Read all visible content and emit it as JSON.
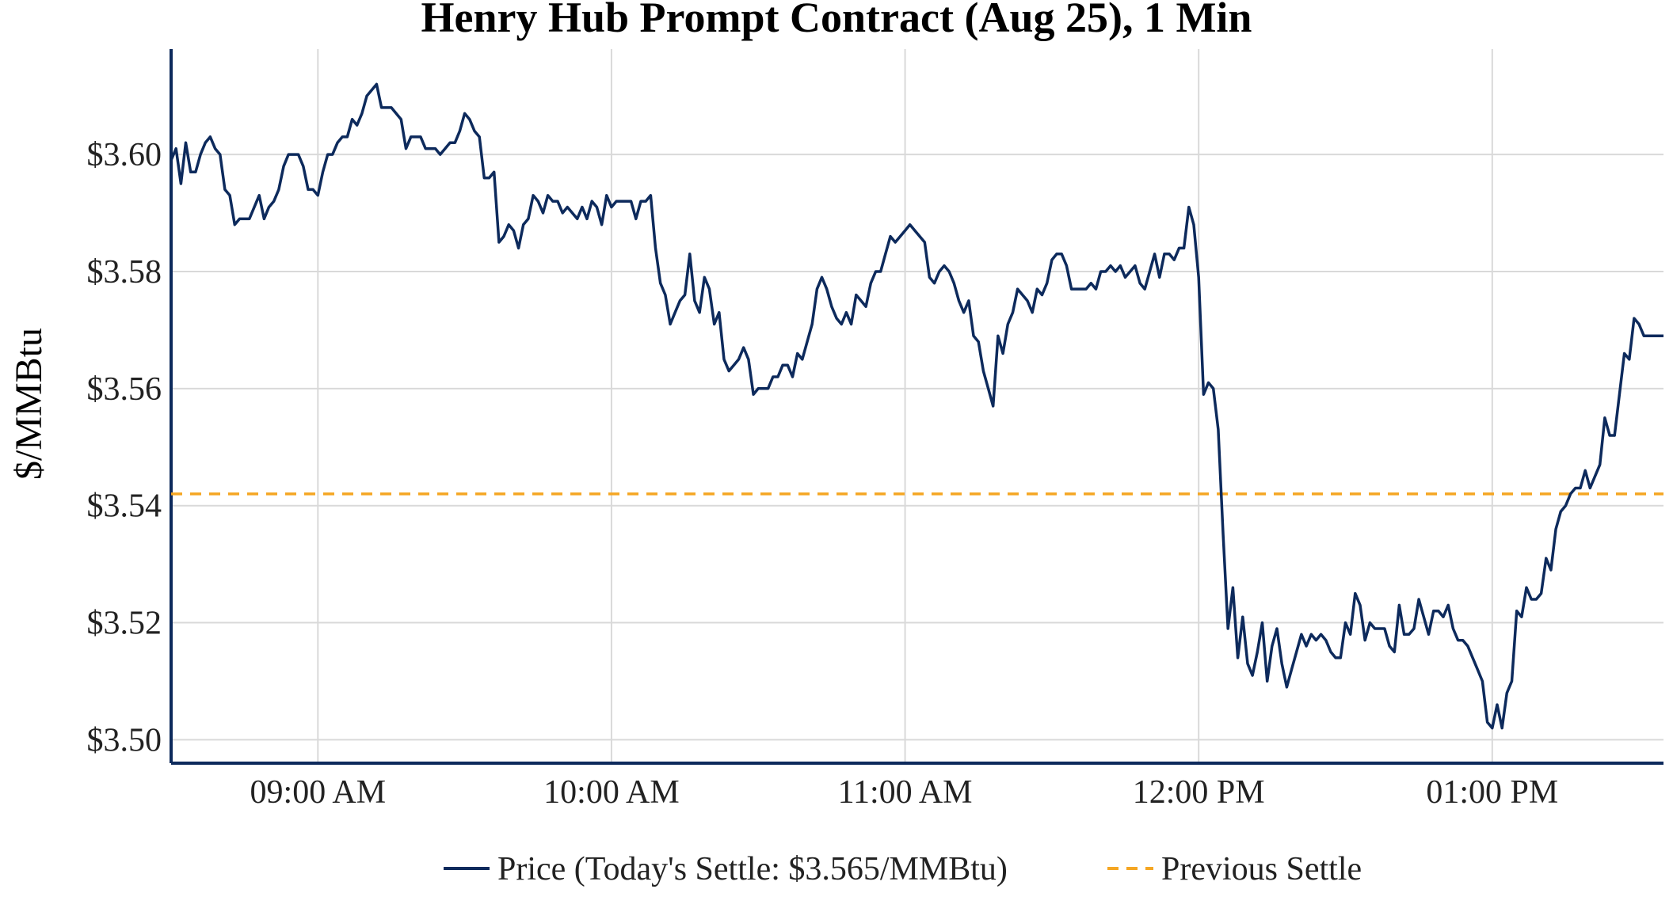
{
  "chart_data": {
    "type": "line",
    "title": "Henry Hub Prompt Contract (Aug 25), 1 Min",
    "xlabel": "",
    "ylabel": "$/MMBtu",
    "x_ticks": [
      "09:00 AM",
      "10:00 AM",
      "11:00 AM",
      "12:00 PM",
      "01:00 PM"
    ],
    "y_ticks": [
      "$3.50",
      "$3.52",
      "$3.54",
      "$3.56",
      "$3.58",
      "$3.60"
    ],
    "y_tick_values": [
      3.5,
      3.52,
      3.54,
      3.56,
      3.58,
      3.6
    ],
    "ylim": [
      3.496,
      3.618
    ],
    "xlim_minutes": [
      510,
      815
    ],
    "x_tick_minutes": [
      540,
      600,
      660,
      720,
      780
    ],
    "grid": true,
    "legend_position": "bottom",
    "series": [
      {
        "name": "Price (Today's Settle: $3.565/MMBtu)",
        "color": "#0d2a5c",
        "points": [
          [
            510,
            3.599
          ],
          [
            511,
            3.601
          ],
          [
            512,
            3.595
          ],
          [
            513,
            3.602
          ],
          [
            514,
            3.597
          ],
          [
            515,
            3.597
          ],
          [
            516,
            3.6
          ],
          [
            517,
            3.602
          ],
          [
            518,
            3.603
          ],
          [
            519,
            3.601
          ],
          [
            520,
            3.6
          ],
          [
            521,
            3.594
          ],
          [
            522,
            3.593
          ],
          [
            523,
            3.588
          ],
          [
            524,
            3.589
          ],
          [
            526,
            3.589
          ],
          [
            528,
            3.593
          ],
          [
            529,
            3.589
          ],
          [
            530,
            3.591
          ],
          [
            531,
            3.592
          ],
          [
            532,
            3.594
          ],
          [
            533,
            3.598
          ],
          [
            534,
            3.6
          ],
          [
            536,
            3.6
          ],
          [
            537,
            3.598
          ],
          [
            538,
            3.594
          ],
          [
            539,
            3.594
          ],
          [
            540,
            3.593
          ],
          [
            541,
            3.597
          ],
          [
            542,
            3.6
          ],
          [
            543,
            3.6
          ],
          [
            544,
            3.602
          ],
          [
            545,
            3.603
          ],
          [
            546,
            3.603
          ],
          [
            547,
            3.606
          ],
          [
            548,
            3.605
          ],
          [
            549,
            3.607
          ],
          [
            550,
            3.61
          ],
          [
            552,
            3.612
          ],
          [
            553,
            3.608
          ],
          [
            555,
            3.608
          ],
          [
            557,
            3.606
          ],
          [
            558,
            3.601
          ],
          [
            559,
            3.603
          ],
          [
            561,
            3.603
          ],
          [
            562,
            3.601
          ],
          [
            564,
            3.601
          ],
          [
            565,
            3.6
          ],
          [
            566,
            3.601
          ],
          [
            567,
            3.602
          ],
          [
            568,
            3.602
          ],
          [
            569,
            3.604
          ],
          [
            570,
            3.607
          ],
          [
            571,
            3.606
          ],
          [
            572,
            3.604
          ],
          [
            573,
            3.603
          ],
          [
            574,
            3.596
          ],
          [
            575,
            3.596
          ],
          [
            576,
            3.597
          ],
          [
            577,
            3.585
          ],
          [
            578,
            3.586
          ],
          [
            579,
            3.588
          ],
          [
            580,
            3.587
          ],
          [
            581,
            3.584
          ],
          [
            582,
            3.588
          ],
          [
            583,
            3.589
          ],
          [
            584,
            3.593
          ],
          [
            585,
            3.592
          ],
          [
            586,
            3.59
          ],
          [
            587,
            3.593
          ],
          [
            588,
            3.592
          ],
          [
            589,
            3.592
          ],
          [
            590,
            3.59
          ],
          [
            591,
            3.591
          ],
          [
            592,
            3.59
          ],
          [
            593,
            3.589
          ],
          [
            594,
            3.591
          ],
          [
            595,
            3.589
          ],
          [
            596,
            3.592
          ],
          [
            597,
            3.591
          ],
          [
            598,
            3.588
          ],
          [
            599,
            3.593
          ],
          [
            600,
            3.591
          ],
          [
            601,
            3.592
          ],
          [
            603,
            3.592
          ],
          [
            604,
            3.592
          ],
          [
            605,
            3.589
          ],
          [
            606,
            3.592
          ],
          [
            607,
            3.592
          ],
          [
            608,
            3.593
          ],
          [
            609,
            3.584
          ],
          [
            610,
            3.578
          ],
          [
            611,
            3.576
          ],
          [
            612,
            3.571
          ],
          [
            613,
            3.573
          ],
          [
            614,
            3.575
          ],
          [
            615,
            3.576
          ],
          [
            616,
            3.583
          ],
          [
            617,
            3.575
          ],
          [
            618,
            3.573
          ],
          [
            619,
            3.579
          ],
          [
            620,
            3.577
          ],
          [
            621,
            3.571
          ],
          [
            622,
            3.573
          ],
          [
            623,
            3.565
          ],
          [
            624,
            3.563
          ],
          [
            625,
            3.564
          ],
          [
            626,
            3.565
          ],
          [
            627,
            3.567
          ],
          [
            628,
            3.565
          ],
          [
            629,
            3.559
          ],
          [
            630,
            3.56
          ],
          [
            632,
            3.56
          ],
          [
            633,
            3.562
          ],
          [
            634,
            3.562
          ],
          [
            635,
            3.564
          ],
          [
            636,
            3.564
          ],
          [
            637,
            3.562
          ],
          [
            638,
            3.566
          ],
          [
            639,
            3.565
          ],
          [
            640,
            3.568
          ],
          [
            641,
            3.571
          ],
          [
            642,
            3.577
          ],
          [
            643,
            3.579
          ],
          [
            644,
            3.577
          ],
          [
            645,
            3.574
          ],
          [
            646,
            3.572
          ],
          [
            647,
            3.571
          ],
          [
            648,
            3.573
          ],
          [
            649,
            3.571
          ],
          [
            650,
            3.576
          ],
          [
            651,
            3.575
          ],
          [
            652,
            3.574
          ],
          [
            653,
            3.578
          ],
          [
            654,
            3.58
          ],
          [
            655,
            3.58
          ],
          [
            656,
            3.583
          ],
          [
            657,
            3.586
          ],
          [
            658,
            3.585
          ],
          [
            659,
            3.586
          ],
          [
            660,
            3.587
          ],
          [
            661,
            3.588
          ],
          [
            662,
            3.587
          ],
          [
            663,
            3.586
          ],
          [
            664,
            3.585
          ],
          [
            665,
            3.579
          ],
          [
            666,
            3.578
          ],
          [
            667,
            3.58
          ],
          [
            668,
            3.581
          ],
          [
            669,
            3.58
          ],
          [
            670,
            3.578
          ],
          [
            671,
            3.575
          ],
          [
            672,
            3.573
          ],
          [
            673,
            3.575
          ],
          [
            674,
            3.569
          ],
          [
            675,
            3.568
          ],
          [
            676,
            3.563
          ],
          [
            677,
            3.56
          ],
          [
            678,
            3.557
          ],
          [
            679,
            3.569
          ],
          [
            680,
            3.566
          ],
          [
            681,
            3.571
          ],
          [
            682,
            3.573
          ],
          [
            683,
            3.577
          ],
          [
            684,
            3.576
          ],
          [
            685,
            3.575
          ],
          [
            686,
            3.573
          ],
          [
            687,
            3.577
          ],
          [
            688,
            3.576
          ],
          [
            689,
            3.578
          ],
          [
            690,
            3.582
          ],
          [
            691,
            3.583
          ],
          [
            692,
            3.583
          ],
          [
            693,
            3.581
          ],
          [
            694,
            3.577
          ],
          [
            695,
            3.577
          ],
          [
            696,
            3.577
          ],
          [
            697,
            3.577
          ],
          [
            698,
            3.578
          ],
          [
            699,
            3.577
          ],
          [
            700,
            3.58
          ],
          [
            701,
            3.58
          ],
          [
            702,
            3.581
          ],
          [
            703,
            3.58
          ],
          [
            704,
            3.581
          ],
          [
            705,
            3.579
          ],
          [
            706,
            3.58
          ],
          [
            707,
            3.581
          ],
          [
            708,
            3.578
          ],
          [
            709,
            3.577
          ],
          [
            710,
            3.58
          ],
          [
            711,
            3.583
          ],
          [
            712,
            3.579
          ],
          [
            713,
            3.583
          ],
          [
            714,
            3.583
          ],
          [
            715,
            3.582
          ],
          [
            716,
            3.584
          ],
          [
            717,
            3.584
          ],
          [
            718,
            3.591
          ],
          [
            719,
            3.588
          ],
          [
            720,
            3.579
          ],
          [
            721,
            3.559
          ],
          [
            722,
            3.561
          ],
          [
            723,
            3.56
          ],
          [
            724,
            3.553
          ],
          [
            725,
            3.535
          ],
          [
            726,
            3.519
          ],
          [
            727,
            3.526
          ],
          [
            728,
            3.514
          ],
          [
            729,
            3.521
          ],
          [
            730,
            3.513
          ],
          [
            731,
            3.511
          ],
          [
            732,
            3.515
          ],
          [
            733,
            3.52
          ],
          [
            734,
            3.51
          ],
          [
            735,
            3.516
          ],
          [
            736,
            3.519
          ],
          [
            737,
            3.513
          ],
          [
            738,
            3.509
          ],
          [
            739,
            3.512
          ],
          [
            740,
            3.515
          ],
          [
            741,
            3.518
          ],
          [
            742,
            3.516
          ],
          [
            743,
            3.518
          ],
          [
            744,
            3.517
          ],
          [
            745,
            3.518
          ],
          [
            746,
            3.517
          ],
          [
            747,
            3.515
          ],
          [
            748,
            3.514
          ],
          [
            749,
            3.514
          ],
          [
            750,
            3.52
          ],
          [
            751,
            3.518
          ],
          [
            752,
            3.525
          ],
          [
            753,
            3.523
          ],
          [
            754,
            3.517
          ],
          [
            755,
            3.52
          ],
          [
            756,
            3.519
          ],
          [
            758,
            3.519
          ],
          [
            759,
            3.516
          ],
          [
            760,
            3.515
          ],
          [
            761,
            3.523
          ],
          [
            762,
            3.518
          ],
          [
            763,
            3.518
          ],
          [
            764,
            3.519
          ],
          [
            765,
            3.524
          ],
          [
            766,
            3.521
          ],
          [
            767,
            3.518
          ],
          [
            768,
            3.522
          ],
          [
            769,
            3.522
          ],
          [
            770,
            3.521
          ],
          [
            771,
            3.523
          ],
          [
            772,
            3.519
          ],
          [
            773,
            3.517
          ],
          [
            774,
            3.517
          ],
          [
            775,
            3.516
          ],
          [
            776,
            3.514
          ],
          [
            777,
            3.512
          ],
          [
            778,
            3.51
          ],
          [
            779,
            3.503
          ],
          [
            780,
            3.502
          ],
          [
            781,
            3.506
          ],
          [
            782,
            3.502
          ],
          [
            783,
            3.508
          ],
          [
            784,
            3.51
          ],
          [
            785,
            3.522
          ],
          [
            786,
            3.521
          ],
          [
            787,
            3.526
          ],
          [
            788,
            3.524
          ],
          [
            789,
            3.524
          ],
          [
            790,
            3.525
          ],
          [
            791,
            3.531
          ],
          [
            792,
            3.529
          ],
          [
            793,
            3.536
          ],
          [
            794,
            3.539
          ],
          [
            795,
            3.54
          ],
          [
            796,
            3.542
          ],
          [
            797,
            3.543
          ],
          [
            798,
            3.543
          ],
          [
            799,
            3.546
          ],
          [
            800,
            3.543
          ],
          [
            801,
            3.545
          ],
          [
            802,
            3.547
          ],
          [
            803,
            3.555
          ],
          [
            804,
            3.552
          ],
          [
            805,
            3.552
          ],
          [
            806,
            3.559
          ],
          [
            807,
            3.566
          ],
          [
            808,
            3.565
          ],
          [
            809,
            3.572
          ],
          [
            810,
            3.571
          ],
          [
            811,
            3.569
          ],
          [
            813,
            3.569
          ],
          [
            815,
            3.569
          ]
        ]
      },
      {
        "name": "Previous Settle",
        "color": "#f5a623",
        "style": "dashed",
        "value": 3.542
      }
    ]
  }
}
